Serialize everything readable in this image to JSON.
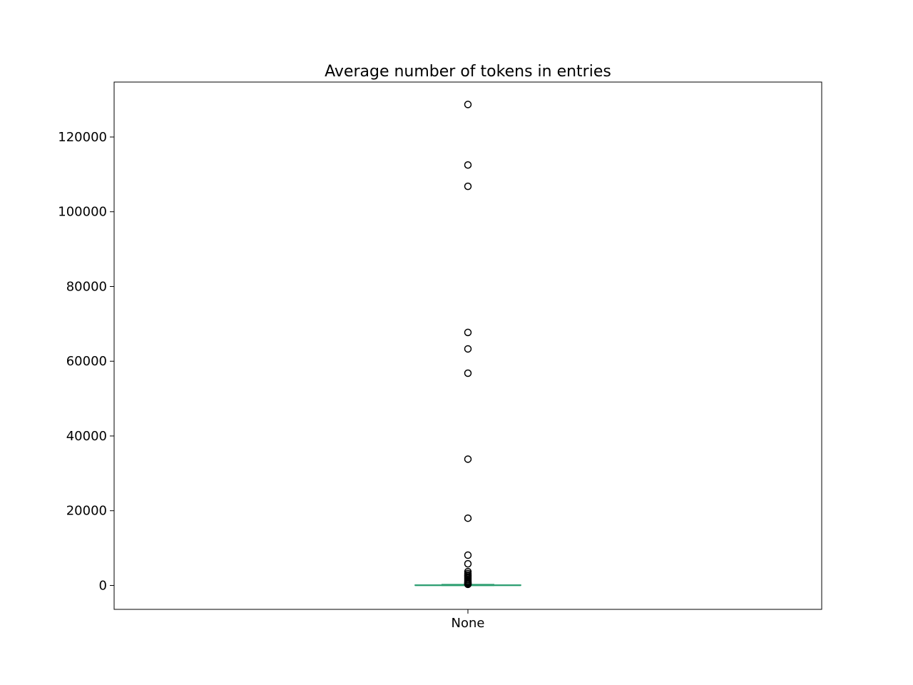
{
  "chart_data": {
    "type": "box",
    "title": "Average number of tokens in entries",
    "xlabel": "",
    "ylabel": "",
    "categories": [
      "None"
    ],
    "ylim": [
      -6400,
      134700
    ],
    "yticks": [
      0,
      20000,
      40000,
      60000,
      80000,
      100000,
      120000
    ],
    "ytick_labels": [
      "0",
      "20000",
      "40000",
      "60000",
      "80000",
      "100000",
      "120000"
    ],
    "grid": false,
    "legend": "none",
    "boxes": [
      {
        "category": "None",
        "q1": 20,
        "median": 50,
        "q3": 120,
        "whisker_low": 0,
        "whisker_high": 270,
        "outliers": [
          128700,
          112500,
          106800,
          67700,
          63300,
          56800,
          33800,
          18000,
          8100,
          5800,
          3700,
          3200,
          2800,
          2500,
          2200,
          1900,
          1600,
          1300,
          1000,
          800,
          600,
          450,
          350,
          300
        ]
      }
    ],
    "colors": {
      "median": "#2a9d6f",
      "box": "#2a9d6f",
      "outlier_edge": "#000000"
    }
  }
}
